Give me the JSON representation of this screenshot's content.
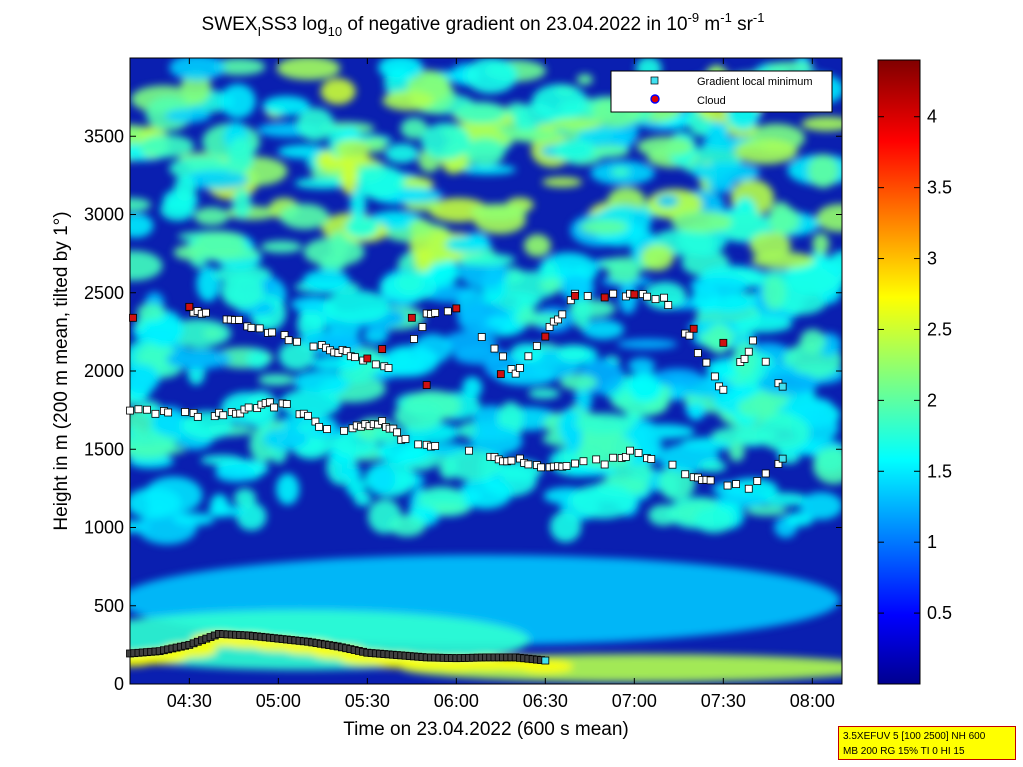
{
  "chart_data": {
    "type": "heatmap",
    "title": {
      "p1": "SWEX",
      "p1_sub": "I",
      "p2": "SS3 log",
      "p2_sub": "10",
      "p3": " of negative gradient on 23.04.2022 in 10",
      "p3_sup": "-9",
      "p4": " m",
      "p4_sup": "-1",
      "p5": " sr",
      "p5_sup": "-1"
    },
    "xlabel": "Time on 23.04.2022 (600 s mean)",
    "ylabel": "Height in m (200 m mean, tilted by 1°)",
    "xlim": [
      "04:10",
      "08:10"
    ],
    "ylim": [
      0,
      4000
    ],
    "x_ticks": [
      "04:30",
      "05:00",
      "05:30",
      "06:00",
      "06:30",
      "07:00",
      "07:30",
      "08:00"
    ],
    "y_ticks": [
      "0",
      "500",
      "1000",
      "1500",
      "2000",
      "2500",
      "3000",
      "3500"
    ],
    "colorbar": {
      "range": [
        0,
        4.4
      ],
      "ticks": [
        "0.5",
        "1",
        "1.5",
        "2",
        "2.5",
        "3",
        "3.5",
        "4"
      ],
      "colormap": "jet"
    },
    "legend": {
      "position": "top-right",
      "entries": [
        {
          "label": "Gradient local minimum",
          "color": "#40e0f0",
          "marker": "square"
        },
        {
          "label": "Cloud",
          "color": "#e00000",
          "marker": "circle"
        }
      ]
    },
    "series": [
      {
        "points": [
          [
            "04:10",
            195
          ],
          [
            "04:20",
            210
          ],
          [
            "04:30",
            250
          ],
          [
            "04:40",
            320
          ],
          [
            "04:50",
            310
          ],
          [
            "05:00",
            290
          ],
          [
            "05:10",
            270
          ],
          [
            "05:20",
            240
          ],
          [
            "05:30",
            200
          ],
          [
            "05:40",
            185
          ],
          [
            "05:50",
            170
          ],
          [
            "06:00",
            165
          ],
          [
            "06:10",
            170
          ],
          [
            "06:20",
            170
          ],
          [
            "06:30",
            150
          ]
        ]
      },
      {
        "points": [
          [
            "04:10",
            1750
          ],
          [
            "04:20",
            1730
          ],
          [
            "04:30",
            1720
          ],
          [
            "04:40",
            1720
          ],
          [
            "04:50",
            1760
          ],
          [
            "05:00",
            1790
          ],
          [
            "05:10",
            1720
          ],
          [
            "05:15",
            1620
          ],
          [
            "05:25",
            1640
          ],
          [
            "05:35",
            1680
          ],
          [
            "05:40",
            1590
          ],
          [
            "05:50",
            1520
          ],
          [
            "06:00",
            1490
          ],
          [
            "06:10",
            1460
          ],
          [
            "06:20",
            1430
          ],
          [
            "06:30",
            1380
          ],
          [
            "06:40",
            1410
          ],
          [
            "06:50",
            1420
          ],
          [
            "07:00",
            1480
          ],
          [
            "07:10",
            1420
          ],
          [
            "07:20",
            1330
          ],
          [
            "07:30",
            1280
          ],
          [
            "07:40",
            1260
          ],
          [
            "07:50",
            1440
          ]
        ]
      },
      {
        "points": [
          [
            "04:30",
            2400
          ],
          [
            "05:30",
            2070
          ],
          [
            "05:40",
            2000
          ],
          [
            "05:50",
            2350
          ],
          [
            "06:00",
            2390
          ],
          [
            "06:20",
            2000
          ],
          [
            "06:30",
            2230
          ],
          [
            "06:40",
            2480
          ],
          [
            "07:00",
            2480
          ],
          [
            "07:10",
            2460
          ],
          [
            "07:30",
            1870
          ],
          [
            "07:40",
            2180
          ],
          [
            "07:50",
            1900
          ]
        ]
      }
    ],
    "clouds": [
      [
        "04:11",
        2340
      ],
      [
        "04:30",
        2410
      ],
      [
        "05:30",
        2080
      ],
      [
        "05:35",
        2140
      ],
      [
        "05:45",
        2340
      ],
      [
        "05:50",
        1910
      ],
      [
        "06:00",
        2400
      ],
      [
        "06:15",
        1980
      ],
      [
        "06:30",
        2220
      ],
      [
        "06:40",
        2480
      ],
      [
        "06:50",
        2470
      ],
      [
        "07:00",
        2490
      ],
      [
        "07:20",
        2270
      ],
      [
        "07:30",
        2180
      ]
    ]
  },
  "infobox": {
    "line1": "3.5XEFUV 5 [100 2500] NH 600",
    "line2": "MB 200 RG 15% TI 0 HI 15"
  }
}
